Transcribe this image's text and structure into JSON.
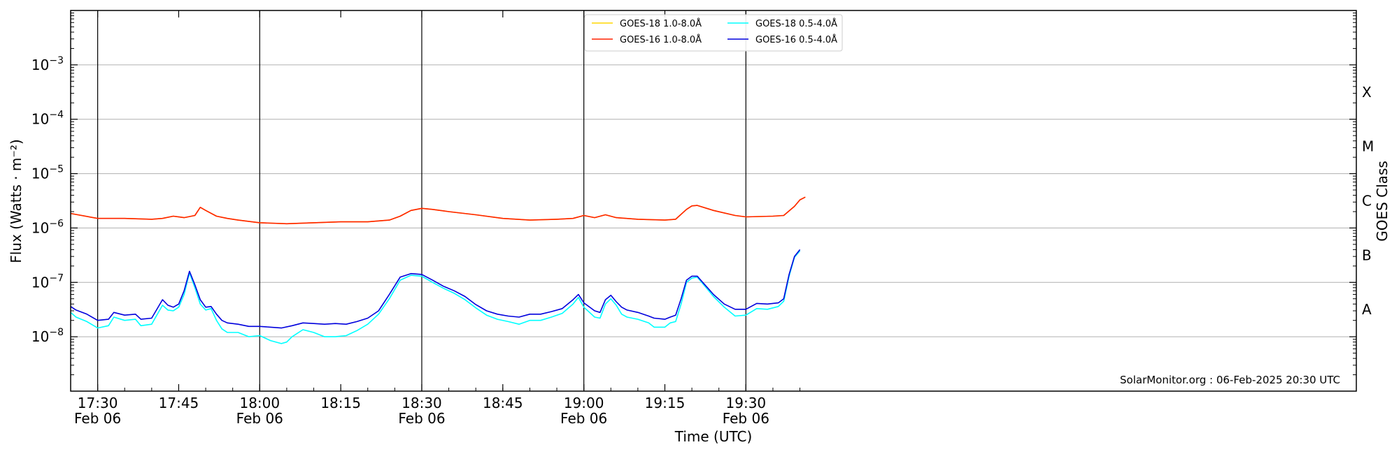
{
  "chart_data": {
    "type": "line",
    "xlabel": "Time (UTC)",
    "ylabel": "Flux (Watts · m⁻²)",
    "right_label": "GOES Class",
    "y_scale": "log",
    "ylim": [
      1e-09,
      0.01
    ],
    "xlim_min": [
      1045,
      1283
    ],
    "grid": "horizontal major gridlines (grey), vertical lines at half hours (black)",
    "legend_placement": "top-center",
    "credit": "SolarMonitor.org : 06-Feb-2025 20:30 UTC",
    "x_ticks": [
      {
        "t": 1050,
        "line1": "17:30",
        "line2": "Feb 06",
        "major": true
      },
      {
        "t": 1065,
        "line1": "17:45",
        "line2": "",
        "major": false
      },
      {
        "t": 1080,
        "line1": "18:00",
        "line2": "Feb 06",
        "major": true
      },
      {
        "t": 1095,
        "line1": "18:15",
        "line2": "",
        "major": false
      },
      {
        "t": 1110,
        "line1": "18:30",
        "line2": "Feb 06",
        "major": true
      },
      {
        "t": 1125,
        "line1": "18:45",
        "line2": "",
        "major": false
      },
      {
        "t": 1140,
        "line1": "19:00",
        "line2": "Feb 06",
        "major": true
      },
      {
        "t": 1155,
        "line1": "19:15",
        "line2": "",
        "major": false
      },
      {
        "t": 1170,
        "line1": "19:30",
        "line2": "Feb 06",
        "major": true
      }
    ],
    "y_ticks": [
      {
        "exp": -8,
        "label": "10",
        "sup": "−8"
      },
      {
        "exp": -7,
        "label": "10",
        "sup": "−7"
      },
      {
        "exp": -6,
        "label": "10",
        "sup": "−6"
      },
      {
        "exp": -5,
        "label": "10",
        "sup": "−5"
      },
      {
        "exp": -4,
        "label": "10",
        "sup": "−4"
      },
      {
        "exp": -3,
        "label": "10",
        "sup": "−3"
      }
    ],
    "goes_classes": [
      {
        "label": "A",
        "exp": -7.5
      },
      {
        "label": "B",
        "exp": -6.5
      },
      {
        "label": "C",
        "exp": -5.5
      },
      {
        "label": "M",
        "exp": -4.5
      },
      {
        "label": "X",
        "exp": -3.5
      }
    ],
    "series": [
      {
        "name": "GOES-18 1.0-8.0Å",
        "color": "#ffd700",
        "points": [
          [
            1045,
            1.85e-06
          ],
          [
            1050,
            1.5e-06
          ],
          [
            1055,
            1.5e-06
          ],
          [
            1060,
            1.45e-06
          ],
          [
            1062,
            1.5e-06
          ],
          [
            1064,
            1.65e-06
          ],
          [
            1066,
            1.55e-06
          ],
          [
            1068,
            1.7e-06
          ],
          [
            1069,
            2.4e-06
          ],
          [
            1070,
            2.1e-06
          ],
          [
            1072,
            1.65e-06
          ],
          [
            1074,
            1.5e-06
          ],
          [
            1076,
            1.4e-06
          ],
          [
            1080,
            1.25e-06
          ],
          [
            1085,
            1.2e-06
          ],
          [
            1090,
            1.25e-06
          ],
          [
            1095,
            1.3e-06
          ],
          [
            1100,
            1.3e-06
          ],
          [
            1104,
            1.4e-06
          ],
          [
            1106,
            1.65e-06
          ],
          [
            1108,
            2.1e-06
          ],
          [
            1110,
            2.3e-06
          ],
          [
            1112,
            2.2e-06
          ],
          [
            1115,
            2e-06
          ],
          [
            1120,
            1.75e-06
          ],
          [
            1125,
            1.5e-06
          ],
          [
            1130,
            1.4e-06
          ],
          [
            1135,
            1.45e-06
          ],
          [
            1138,
            1.5e-06
          ],
          [
            1140,
            1.7e-06
          ],
          [
            1142,
            1.55e-06
          ],
          [
            1144,
            1.75e-06
          ],
          [
            1146,
            1.55e-06
          ],
          [
            1150,
            1.45e-06
          ],
          [
            1155,
            1.4e-06
          ],
          [
            1157,
            1.45e-06
          ],
          [
            1159,
            2.2e-06
          ],
          [
            1160,
            2.55e-06
          ],
          [
            1161,
            2.6e-06
          ],
          [
            1164,
            2.1e-06
          ],
          [
            1168,
            1.7e-06
          ],
          [
            1170,
            1.6e-06
          ],
          [
            1175,
            1.65e-06
          ],
          [
            1177,
            1.7e-06
          ],
          [
            1179,
            2.5e-06
          ],
          [
            1180,
            3.3e-06
          ],
          [
            1181,
            3.7e-06
          ]
        ]
      },
      {
        "name": "GOES-16 1.0-8.0Å",
        "color": "#ff2200",
        "points": [
          [
            1045,
            1.85e-06
          ],
          [
            1050,
            1.5e-06
          ],
          [
            1055,
            1.5e-06
          ],
          [
            1060,
            1.45e-06
          ],
          [
            1062,
            1.5e-06
          ],
          [
            1064,
            1.65e-06
          ],
          [
            1066,
            1.55e-06
          ],
          [
            1068,
            1.7e-06
          ],
          [
            1069,
            2.4e-06
          ],
          [
            1070,
            2.1e-06
          ],
          [
            1072,
            1.65e-06
          ],
          [
            1074,
            1.5e-06
          ],
          [
            1076,
            1.4e-06
          ],
          [
            1080,
            1.25e-06
          ],
          [
            1085,
            1.2e-06
          ],
          [
            1090,
            1.25e-06
          ],
          [
            1095,
            1.3e-06
          ],
          [
            1100,
            1.3e-06
          ],
          [
            1104,
            1.4e-06
          ],
          [
            1106,
            1.65e-06
          ],
          [
            1108,
            2.1e-06
          ],
          [
            1110,
            2.3e-06
          ],
          [
            1112,
            2.2e-06
          ],
          [
            1115,
            2e-06
          ],
          [
            1120,
            1.75e-06
          ],
          [
            1125,
            1.5e-06
          ],
          [
            1130,
            1.4e-06
          ],
          [
            1135,
            1.45e-06
          ],
          [
            1138,
            1.5e-06
          ],
          [
            1140,
            1.7e-06
          ],
          [
            1142,
            1.55e-06
          ],
          [
            1144,
            1.75e-06
          ],
          [
            1146,
            1.55e-06
          ],
          [
            1150,
            1.45e-06
          ],
          [
            1155,
            1.4e-06
          ],
          [
            1157,
            1.45e-06
          ],
          [
            1159,
            2.2e-06
          ],
          [
            1160,
            2.55e-06
          ],
          [
            1161,
            2.6e-06
          ],
          [
            1164,
            2.1e-06
          ],
          [
            1168,
            1.7e-06
          ],
          [
            1170,
            1.6e-06
          ],
          [
            1175,
            1.65e-06
          ],
          [
            1177,
            1.7e-06
          ],
          [
            1179,
            2.5e-06
          ],
          [
            1180,
            3.3e-06
          ],
          [
            1181,
            3.7e-06
          ]
        ]
      },
      {
        "name": "GOES-18 0.5-4.0Å",
        "color": "#00ffff",
        "points": [
          [
            1045,
            2.8e-08
          ],
          [
            1046,
            2.3e-08
          ],
          [
            1048,
            1.9e-08
          ],
          [
            1050,
            1.45e-08
          ],
          [
            1052,
            1.6e-08
          ],
          [
            1053,
            2.3e-08
          ],
          [
            1055,
            2e-08
          ],
          [
            1057,
            2.1e-08
          ],
          [
            1058,
            1.6e-08
          ],
          [
            1060,
            1.7e-08
          ],
          [
            1062,
            3.8e-08
          ],
          [
            1063,
            3.1e-08
          ],
          [
            1064,
            3e-08
          ],
          [
            1065,
            3.5e-08
          ],
          [
            1066,
            6e-08
          ],
          [
            1067,
            1.5e-07
          ],
          [
            1068,
            8e-08
          ],
          [
            1069,
            4e-08
          ],
          [
            1070,
            3.1e-08
          ],
          [
            1071,
            3.3e-08
          ],
          [
            1072,
            2e-08
          ],
          [
            1073,
            1.4e-08
          ],
          [
            1074,
            1.2e-08
          ],
          [
            1076,
            1.2e-08
          ],
          [
            1078,
            1e-08
          ],
          [
            1080,
            1.05e-08
          ],
          [
            1082,
            8.5e-09
          ],
          [
            1084,
            7.5e-09
          ],
          [
            1085,
            8e-09
          ],
          [
            1086,
            1e-08
          ],
          [
            1088,
            1.35e-08
          ],
          [
            1090,
            1.2e-08
          ],
          [
            1092,
            1e-08
          ],
          [
            1094,
            1e-08
          ],
          [
            1096,
            1.05e-08
          ],
          [
            1098,
            1.3e-08
          ],
          [
            1100,
            1.7e-08
          ],
          [
            1102,
            2.6e-08
          ],
          [
            1104,
            5e-08
          ],
          [
            1106,
            1.1e-07
          ],
          [
            1108,
            1.35e-07
          ],
          [
            1110,
            1.3e-07
          ],
          [
            1112,
            1e-07
          ],
          [
            1114,
            7.8e-08
          ],
          [
            1116,
            6.3e-08
          ],
          [
            1118,
            4.8e-08
          ],
          [
            1120,
            3.4e-08
          ],
          [
            1122,
            2.5e-08
          ],
          [
            1124,
            2.1e-08
          ],
          [
            1126,
            1.9e-08
          ],
          [
            1128,
            1.7e-08
          ],
          [
            1130,
            2e-08
          ],
          [
            1132,
            2e-08
          ],
          [
            1134,
            2.3e-08
          ],
          [
            1136,
            2.7e-08
          ],
          [
            1138,
            4e-08
          ],
          [
            1139,
            5.3e-08
          ],
          [
            1140,
            3.5e-08
          ],
          [
            1142,
            2.3e-08
          ],
          [
            1143,
            2.2e-08
          ],
          [
            1144,
            4e-08
          ],
          [
            1145,
            5e-08
          ],
          [
            1146,
            3.8e-08
          ],
          [
            1147,
            2.6e-08
          ],
          [
            1148,
            2.3e-08
          ],
          [
            1150,
            2.1e-08
          ],
          [
            1152,
            1.8e-08
          ],
          [
            1153,
            1.5e-08
          ],
          [
            1155,
            1.5e-08
          ],
          [
            1156,
            1.8e-08
          ],
          [
            1157,
            1.9e-08
          ],
          [
            1158,
            4e-08
          ],
          [
            1159,
            1e-07
          ],
          [
            1160,
            1.2e-07
          ],
          [
            1161,
            1.25e-07
          ],
          [
            1162,
            9.5e-08
          ],
          [
            1164,
            5.5e-08
          ],
          [
            1166,
            3.5e-08
          ],
          [
            1168,
            2.4e-08
          ],
          [
            1170,
            2.5e-08
          ],
          [
            1172,
            3.3e-08
          ],
          [
            1174,
            3.2e-08
          ],
          [
            1176,
            3.6e-08
          ],
          [
            1177,
            4.5e-08
          ],
          [
            1178,
            1.3e-07
          ],
          [
            1179,
            2.9e-07
          ],
          [
            1180,
            3.8e-07
          ]
        ]
      },
      {
        "name": "GOES-16 0.5-4.0Å",
        "color": "#0000dd",
        "points": [
          [
            1045,
            3.6e-08
          ],
          [
            1046,
            3.1e-08
          ],
          [
            1048,
            2.6e-08
          ],
          [
            1050,
            2e-08
          ],
          [
            1052,
            2.1e-08
          ],
          [
            1053,
            2.8e-08
          ],
          [
            1055,
            2.5e-08
          ],
          [
            1057,
            2.6e-08
          ],
          [
            1058,
            2.1e-08
          ],
          [
            1060,
            2.2e-08
          ],
          [
            1062,
            4.8e-08
          ],
          [
            1063,
            3.8e-08
          ],
          [
            1064,
            3.5e-08
          ],
          [
            1065,
            4e-08
          ],
          [
            1066,
            7e-08
          ],
          [
            1067,
            1.6e-07
          ],
          [
            1068,
            9e-08
          ],
          [
            1069,
            4.8e-08
          ],
          [
            1070,
            3.5e-08
          ],
          [
            1071,
            3.6e-08
          ],
          [
            1072,
            2.6e-08
          ],
          [
            1073,
            2e-08
          ],
          [
            1074,
            1.8e-08
          ],
          [
            1076,
            1.7e-08
          ],
          [
            1078,
            1.55e-08
          ],
          [
            1080,
            1.55e-08
          ],
          [
            1082,
            1.5e-08
          ],
          [
            1084,
            1.45e-08
          ],
          [
            1086,
            1.6e-08
          ],
          [
            1088,
            1.8e-08
          ],
          [
            1090,
            1.75e-08
          ],
          [
            1092,
            1.7e-08
          ],
          [
            1094,
            1.75e-08
          ],
          [
            1096,
            1.7e-08
          ],
          [
            1098,
            1.9e-08
          ],
          [
            1100,
            2.2e-08
          ],
          [
            1102,
            3e-08
          ],
          [
            1104,
            6e-08
          ],
          [
            1106,
            1.25e-07
          ],
          [
            1108,
            1.45e-07
          ],
          [
            1110,
            1.4e-07
          ],
          [
            1112,
            1.1e-07
          ],
          [
            1114,
            8.5e-08
          ],
          [
            1116,
            7e-08
          ],
          [
            1118,
            5.5e-08
          ],
          [
            1120,
            3.9e-08
          ],
          [
            1122,
            3e-08
          ],
          [
            1124,
            2.6e-08
          ],
          [
            1126,
            2.4e-08
          ],
          [
            1128,
            2.3e-08
          ],
          [
            1130,
            2.6e-08
          ],
          [
            1132,
            2.6e-08
          ],
          [
            1134,
            2.9e-08
          ],
          [
            1136,
            3.3e-08
          ],
          [
            1138,
            4.8e-08
          ],
          [
            1139,
            6e-08
          ],
          [
            1140,
            4.2e-08
          ],
          [
            1142,
            3e-08
          ],
          [
            1143,
            2.8e-08
          ],
          [
            1144,
            4.8e-08
          ],
          [
            1145,
            5.8e-08
          ],
          [
            1146,
            4.4e-08
          ],
          [
            1147,
            3.5e-08
          ],
          [
            1148,
            3.1e-08
          ],
          [
            1150,
            2.8e-08
          ],
          [
            1152,
            2.4e-08
          ],
          [
            1153,
            2.2e-08
          ],
          [
            1155,
            2.1e-08
          ],
          [
            1156,
            2.3e-08
          ],
          [
            1157,
            2.5e-08
          ],
          [
            1158,
            5e-08
          ],
          [
            1159,
            1.1e-07
          ],
          [
            1160,
            1.3e-07
          ],
          [
            1161,
            1.3e-07
          ],
          [
            1162,
            1e-07
          ],
          [
            1164,
            6e-08
          ],
          [
            1166,
            4e-08
          ],
          [
            1168,
            3.2e-08
          ],
          [
            1170,
            3.2e-08
          ],
          [
            1172,
            4.1e-08
          ],
          [
            1174,
            4e-08
          ],
          [
            1176,
            4.2e-08
          ],
          [
            1177,
            5e-08
          ],
          [
            1178,
            1.4e-07
          ],
          [
            1179,
            3e-07
          ],
          [
            1180,
            4e-07
          ]
        ]
      }
    ]
  }
}
